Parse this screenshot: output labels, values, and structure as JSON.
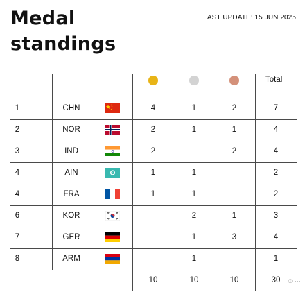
{
  "header": {
    "title_line1": "Medal",
    "title_line2": "standings",
    "last_update": "LAST UPDATE: 15 JUN 2025"
  },
  "table": {
    "total_label": "Total",
    "medal_icons": [
      {
        "name": "gold-medal-icon",
        "color": "#e8b417"
      },
      {
        "name": "silver-medal-icon",
        "color": "#d3d3d3"
      },
      {
        "name": "bronze-medal-icon",
        "color": "#d4917a"
      }
    ],
    "rows": [
      {
        "rank": "1",
        "code": "CHN",
        "flag": "china-flag-icon",
        "gold": "4",
        "silver": "1",
        "bronze": "2",
        "total": "7"
      },
      {
        "rank": "2",
        "code": "NOR",
        "flag": "norway-flag-icon",
        "gold": "2",
        "silver": "1",
        "bronze": "1",
        "total": "4"
      },
      {
        "rank": "3",
        "code": "IND",
        "flag": "india-flag-icon",
        "gold": "2",
        "silver": "",
        "bronze": "2",
        "total": "4"
      },
      {
        "rank": "4",
        "code": "AIN",
        "flag": "ain-flag-icon",
        "gold": "1",
        "silver": "1",
        "bronze": "",
        "total": "2"
      },
      {
        "rank": "4",
        "code": "FRA",
        "flag": "france-flag-icon",
        "gold": "1",
        "silver": "1",
        "bronze": "",
        "total": "2"
      },
      {
        "rank": "6",
        "code": "KOR",
        "flag": "korea-flag-icon",
        "gold": "",
        "silver": "2",
        "bronze": "1",
        "total": "3"
      },
      {
        "rank": "7",
        "code": "GER",
        "flag": "germany-flag-icon",
        "gold": "",
        "silver": "1",
        "bronze": "3",
        "total": "4"
      },
      {
        "rank": "8",
        "code": "ARM",
        "flag": "armenia-flag-icon",
        "gold": "",
        "silver": "1",
        "bronze": "",
        "total": "1"
      }
    ],
    "totals": {
      "gold": "10",
      "silver": "10",
      "bronze": "10",
      "total": "30"
    }
  }
}
